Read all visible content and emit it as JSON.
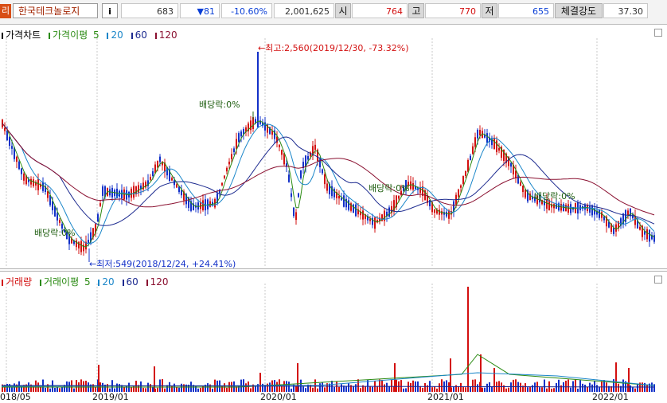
{
  "quote": {
    "tag": "리",
    "name": "한국테크놀로지",
    "info": "i",
    "price": "683",
    "change": "▼81",
    "change_pct": "-10.60%",
    "volume": "2,001,625",
    "open_label": "시",
    "open": "764",
    "high_label": "고",
    "high": "770",
    "low_label": "저",
    "low": "655",
    "strength_label": "체결강도",
    "strength": "37.30"
  },
  "price_panel": {
    "legend": [
      "가격차트",
      "가격이평",
      "5",
      "20",
      "60",
      "120"
    ],
    "annotations": {
      "max": "←최고:2,560(2019/12/30, -73.32%)",
      "min": "←최저:549(2018/12/24, +24.41%)",
      "div1": "배당락:0%",
      "div2": "배당락:0%",
      "div3": "배당락:0%",
      "div4": "배당락:0%"
    }
  },
  "volume_panel": {
    "legend": [
      "거래량",
      "거래이평",
      "5",
      "20",
      "60",
      "120"
    ]
  },
  "x_axis": [
    "018/05",
    "2019/01",
    "2020/01",
    "2021/01",
    "2022/01"
  ],
  "colors": {
    "up": "#d31010",
    "down": "#1230c8",
    "ma5": "#2a8a12",
    "ma20": "#1a86c9",
    "ma60": "#1c2a8f",
    "ma120": "#8a1030"
  }
}
